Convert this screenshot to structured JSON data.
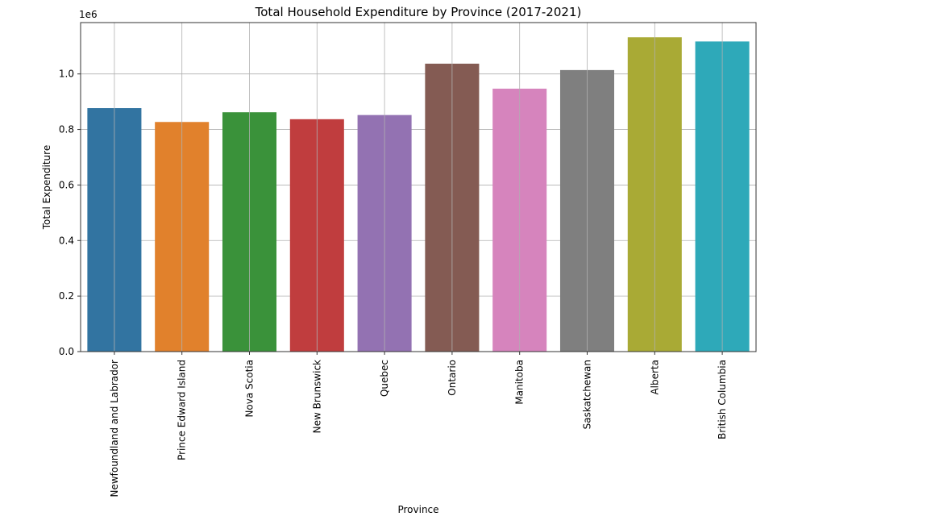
{
  "chart_data": {
    "type": "bar",
    "title": "Total Household Expenditure by Province (2017-2021)",
    "xlabel": "Province",
    "ylabel": "Total Expenditure",
    "offset_label": "1e6",
    "y_scale": 1000000,
    "ylim": [
      0,
      1.185
    ],
    "yticks": [
      0.0,
      0.2,
      0.4,
      0.6,
      0.8,
      1.0
    ],
    "ytick_labels": [
      "0.0",
      "0.2",
      "0.4",
      "0.6",
      "0.8",
      "1.0"
    ],
    "grid": true,
    "categories": [
      "Newfoundland and Labrador",
      "Prince Edward Island",
      "Nova Scotia",
      "New Brunswick",
      "Quebec",
      "Ontario",
      "Manitoba",
      "Saskatchewan",
      "Alberta",
      "British Columbia"
    ],
    "values": [
      0.877,
      0.827,
      0.862,
      0.837,
      0.852,
      1.037,
      0.947,
      1.014,
      1.132,
      1.117
    ],
    "colors": [
      "#3274a1",
      "#e1812c",
      "#3a923a",
      "#c03d3e",
      "#9372b2",
      "#845b53",
      "#d684bd",
      "#7f7f7f",
      "#a9aa35",
      "#2ea9b9"
    ]
  }
}
